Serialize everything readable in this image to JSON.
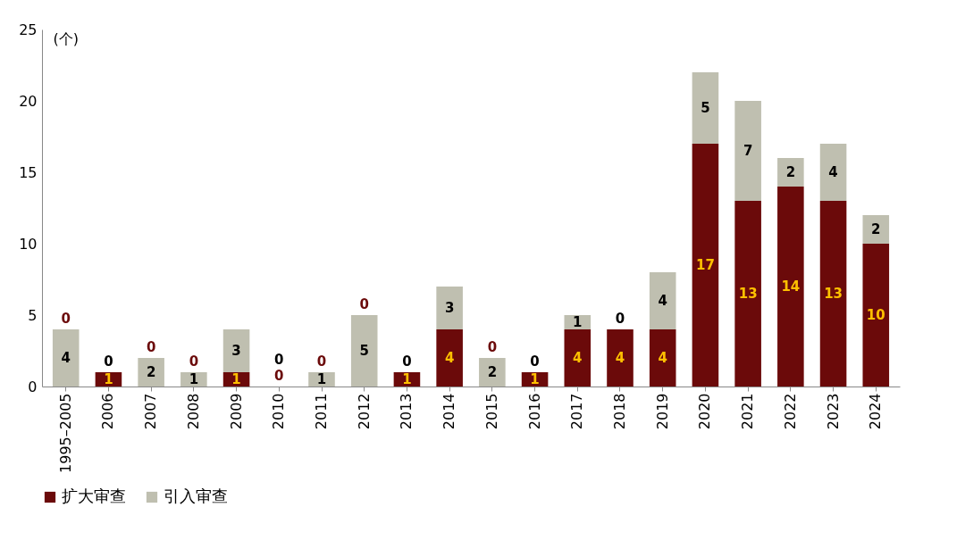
{
  "chart_data": {
    "type": "bar",
    "stacked": true,
    "ylabel": "(个)",
    "categories": [
      "1995–2005",
      "2006",
      "2007",
      "2008",
      "2009",
      "2010",
      "2011",
      "2012",
      "2013",
      "2014",
      "2015",
      "2016",
      "2017",
      "2018",
      "2019",
      "2020",
      "2021",
      "2022",
      "2023",
      "2024"
    ],
    "series": [
      {
        "name": "扩大审查",
        "color": "#6b0a0a",
        "values": [
          0,
          1,
          0,
          0,
          1,
          0,
          0,
          0,
          1,
          4,
          0,
          1,
          4,
          4,
          4,
          17,
          13,
          14,
          13,
          10
        ]
      },
      {
        "name": "引入审查",
        "color": "#bfbfb0",
        "values": [
          4,
          0,
          2,
          1,
          3,
          0,
          1,
          5,
          0,
          3,
          2,
          0,
          1,
          0,
          4,
          5,
          7,
          2,
          4,
          2
        ]
      }
    ],
    "ylim": [
      0,
      25
    ],
    "yticks": [
      0,
      5,
      10,
      15,
      20,
      25
    ],
    "data_labels": true,
    "legend": "bottom",
    "grid": false
  }
}
